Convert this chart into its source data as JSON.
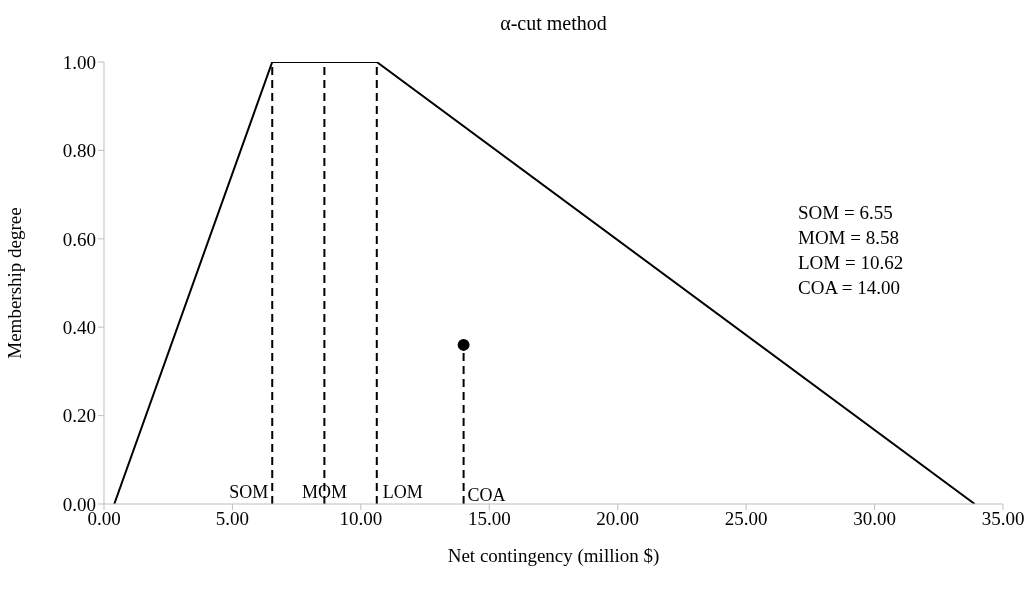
{
  "chart_data": {
    "type": "line",
    "title": "α-cut method",
    "xlabel": "Net contingency (million $)",
    "ylabel": "Membership degree",
    "xlim": [
      0,
      35
    ],
    "xticks": [
      {
        "value": 0,
        "label": "0.00"
      },
      {
        "value": 5,
        "label": "5.00"
      },
      {
        "value": 10,
        "label": "10.00"
      },
      {
        "value": 15,
        "label": "15.00"
      },
      {
        "value": 20,
        "label": "20.00"
      },
      {
        "value": 25,
        "label": "25.00"
      },
      {
        "value": 30,
        "label": "30.00"
      },
      {
        "value": 35,
        "label": "35.00"
      }
    ],
    "ylim": [
      0,
      1
    ],
    "yticks": [
      {
        "value": 0,
        "label": "0.00"
      },
      {
        "value": 0.2,
        "label": "0.20"
      },
      {
        "value": 0.4,
        "label": "0.40"
      },
      {
        "value": 0.6,
        "label": "0.60"
      },
      {
        "value": 0.8,
        "label": "0.80"
      },
      {
        "value": 1,
        "label": "1.00"
      }
    ],
    "grid": false,
    "legend": false,
    "series": [
      {
        "color": "#000000",
        "x": [
          0.4,
          6.55,
          10.62,
          33.9
        ],
        "values": [
          0,
          1,
          1,
          0
        ],
        "marker": "none",
        "line_style": "solid"
      },
      {
        "type": "lollipop",
        "color": "#000000",
        "x": [
          14
        ],
        "values": [
          0.36
        ],
        "marker": "circle",
        "line_style": "dashed"
      }
    ],
    "ref_lines": [
      {
        "axis": "x",
        "value": 6.55,
        "label": "SOM",
        "color": "#000000",
        "line_style": "dashed"
      },
      {
        "axis": "x",
        "value": 8.58,
        "label": "MOM",
        "color": "#000000",
        "line_style": "dashed"
      },
      {
        "axis": "x",
        "value": 10.62,
        "label": "LOM",
        "color": "#000000",
        "line_style": "dashed"
      }
    ],
    "annotations": [
      "COA",
      "SOM = 6.55",
      "MOM = 8.58",
      "LOM = 10.62",
      "COA = 14.00"
    ]
  }
}
